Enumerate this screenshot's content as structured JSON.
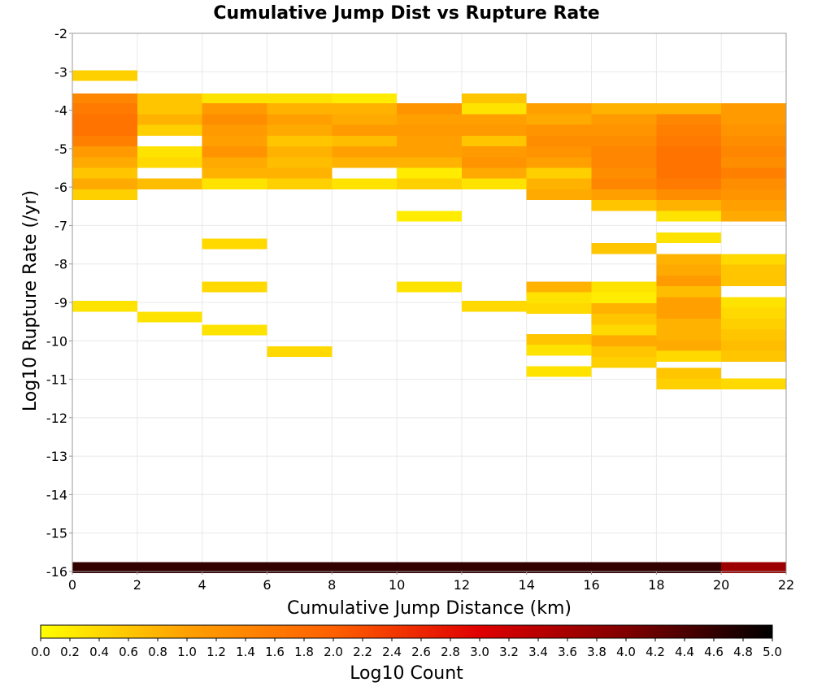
{
  "chart_data": {
    "type": "heatmap",
    "title": "Cumulative Jump Dist vs Rupture Rate",
    "xlabel": "Cumulative Jump Distance (km)",
    "ylabel": "Log10 Rupture Rate (/yr)",
    "xlim": [
      0,
      22
    ],
    "ylim": [
      -16,
      -2
    ],
    "x_ticks": [
      "0",
      "2",
      "4",
      "6",
      "8",
      "10",
      "12",
      "14",
      "16",
      "18",
      "20",
      "22"
    ],
    "y_ticks": [
      "-2",
      "-3",
      "-4",
      "-5",
      "-6",
      "-7",
      "-8",
      "-9",
      "-10",
      "-11",
      "-12",
      "-13",
      "-14",
      "-15",
      "-16"
    ],
    "grid": true,
    "x_bin_width": 2,
    "y_bin_width": 0.28,
    "colorbar": {
      "label": "Log10 Count",
      "min": 0,
      "max": 5,
      "ticks": [
        "0.0",
        "0.2",
        "0.4",
        "0.6",
        "0.8",
        "1.0",
        "1.2",
        "1.4",
        "1.6",
        "1.8",
        "2.0",
        "2.2",
        "2.4",
        "2.6",
        "2.8",
        "3.0",
        "3.2",
        "3.4",
        "3.6",
        "3.8",
        "4.0",
        "4.2",
        "4.4",
        "4.6",
        "4.8",
        "5.0"
      ],
      "colors": [
        "#ffff00",
        "#ffa000",
        "#ff6000",
        "#e00000",
        "#800000",
        "#000000"
      ]
    },
    "columns": [
      {
        "x": 0,
        "cells": [
          [
            -3.1,
            0.5
          ],
          [
            -3.7,
            1.4
          ],
          [
            -3.96,
            1.6
          ],
          [
            -4.24,
            1.7
          ],
          [
            -4.52,
            1.7
          ],
          [
            -4.8,
            1.5
          ],
          [
            -5.08,
            1.1
          ],
          [
            -5.36,
            0.9
          ],
          [
            -5.64,
            0.6
          ],
          [
            -5.92,
            0.9
          ],
          [
            -6.2,
            0.5
          ],
          [
            -9.1,
            0.3
          ],
          [
            -15.9,
            4.6
          ]
        ]
      },
      {
        "x": 2,
        "cells": [
          [
            -3.7,
            0.6
          ],
          [
            -3.96,
            0.6
          ],
          [
            -4.24,
            0.8
          ],
          [
            -4.52,
            0.5
          ],
          [
            -5.08,
            0.3
          ],
          [
            -5.36,
            0.4
          ],
          [
            -5.92,
            0.7
          ],
          [
            -9.38,
            0.3
          ],
          [
            -15.9,
            4.6
          ]
        ]
      },
      {
        "x": 4,
        "cells": [
          [
            -3.7,
            0.3
          ],
          [
            -3.96,
            1.1
          ],
          [
            -4.24,
            1.3
          ],
          [
            -4.52,
            1.1
          ],
          [
            -4.8,
            1.0
          ],
          [
            -5.08,
            1.2
          ],
          [
            -5.36,
            0.9
          ],
          [
            -5.64,
            0.8
          ],
          [
            -5.92,
            0.3
          ],
          [
            -7.48,
            0.4
          ],
          [
            -8.6,
            0.4
          ],
          [
            -9.72,
            0.3
          ],
          [
            -15.9,
            4.6
          ]
        ]
      },
      {
        "x": 6,
        "cells": [
          [
            -3.7,
            0.3
          ],
          [
            -3.96,
            0.8
          ],
          [
            -4.24,
            1.0
          ],
          [
            -4.52,
            0.9
          ],
          [
            -4.8,
            0.6
          ],
          [
            -5.08,
            0.8
          ],
          [
            -5.36,
            0.7
          ],
          [
            -5.64,
            0.8
          ],
          [
            -5.92,
            0.5
          ],
          [
            -10.28,
            0.4
          ],
          [
            -15.9,
            4.6
          ]
        ]
      },
      {
        "x": 8,
        "cells": [
          [
            -3.7,
            0.2
          ],
          [
            -3.96,
            0.8
          ],
          [
            -4.24,
            0.9
          ],
          [
            -4.52,
            1.1
          ],
          [
            -4.8,
            0.7
          ],
          [
            -5.08,
            1.0
          ],
          [
            -5.36,
            0.8
          ],
          [
            -5.92,
            0.3
          ],
          [
            -15.9,
            4.6
          ]
        ]
      },
      {
        "x": 10,
        "cells": [
          [
            -3.96,
            1.2
          ],
          [
            -4.24,
            1.0
          ],
          [
            -4.52,
            1.1
          ],
          [
            -4.8,
            1.0
          ],
          [
            -5.08,
            1.0
          ],
          [
            -5.36,
            0.8
          ],
          [
            -5.64,
            0.2
          ],
          [
            -5.92,
            0.5
          ],
          [
            -6.76,
            0.2
          ],
          [
            -8.6,
            0.3
          ],
          [
            -15.9,
            4.6
          ]
        ]
      },
      {
        "x": 12,
        "cells": [
          [
            -3.7,
            0.6
          ],
          [
            -3.96,
            0.3
          ],
          [
            -4.24,
            1.0
          ],
          [
            -4.52,
            1.1
          ],
          [
            -4.8,
            0.6
          ],
          [
            -5.08,
            1.1
          ],
          [
            -5.36,
            1.2
          ],
          [
            -5.64,
            0.9
          ],
          [
            -5.92,
            0.3
          ],
          [
            -9.1,
            0.4
          ],
          [
            -15.9,
            4.6
          ]
        ]
      },
      {
        "x": 14,
        "cells": [
          [
            -3.96,
            1.0
          ],
          [
            -4.24,
            0.9
          ],
          [
            -4.52,
            1.2
          ],
          [
            -4.8,
            1.3
          ],
          [
            -5.08,
            1.2
          ],
          [
            -5.36,
            1.0
          ],
          [
            -5.64,
            0.5
          ],
          [
            -5.92,
            0.8
          ],
          [
            -6.2,
            0.9
          ],
          [
            -8.6,
            0.8
          ],
          [
            -8.88,
            0.3
          ],
          [
            -9.16,
            0.4
          ],
          [
            -9.96,
            0.6
          ],
          [
            -10.24,
            0.3
          ],
          [
            -10.8,
            0.3
          ],
          [
            -15.9,
            4.6
          ]
        ]
      },
      {
        "x": 16,
        "cells": [
          [
            -3.96,
            0.8
          ],
          [
            -4.24,
            1.1
          ],
          [
            -4.52,
            1.2
          ],
          [
            -4.8,
            1.3
          ],
          [
            -5.08,
            1.4
          ],
          [
            -5.36,
            1.4
          ],
          [
            -5.64,
            1.3
          ],
          [
            -5.92,
            1.4
          ],
          [
            -6.2,
            1.0
          ],
          [
            -6.48,
            0.6
          ],
          [
            -7.6,
            0.6
          ],
          [
            -8.6,
            0.3
          ],
          [
            -8.88,
            0.2
          ],
          [
            -9.16,
            0.8
          ],
          [
            -9.44,
            0.6
          ],
          [
            -9.72,
            0.4
          ],
          [
            -10.0,
            0.9
          ],
          [
            -10.28,
            0.6
          ],
          [
            -10.56,
            0.5
          ],
          [
            -15.9,
            4.6
          ]
        ]
      },
      {
        "x": 18,
        "cells": [
          [
            -3.96,
            0.8
          ],
          [
            -4.24,
            1.4
          ],
          [
            -4.52,
            1.5
          ],
          [
            -4.8,
            1.6
          ],
          [
            -5.08,
            1.7
          ],
          [
            -5.36,
            1.7
          ],
          [
            -5.64,
            1.7
          ],
          [
            -5.92,
            1.6
          ],
          [
            -6.2,
            1.3
          ],
          [
            -6.48,
            0.8
          ],
          [
            -6.76,
            0.3
          ],
          [
            -7.32,
            0.3
          ],
          [
            -7.88,
            0.8
          ],
          [
            -8.16,
            0.9
          ],
          [
            -8.44,
            1.1
          ],
          [
            -8.72,
            0.7
          ],
          [
            -9.0,
            1.0
          ],
          [
            -9.28,
            1.0
          ],
          [
            -9.56,
            0.8
          ],
          [
            -9.84,
            0.8
          ],
          [
            -10.12,
            0.9
          ],
          [
            -10.4,
            0.4
          ],
          [
            -10.84,
            0.6
          ],
          [
            -11.12,
            0.5
          ],
          [
            -15.9,
            4.6
          ]
        ]
      },
      {
        "x": 20,
        "cells": [
          [
            -3.96,
            1.1
          ],
          [
            -4.24,
            1.1
          ],
          [
            -4.52,
            1.2
          ],
          [
            -4.8,
            1.3
          ],
          [
            -5.08,
            1.4
          ],
          [
            -5.36,
            1.3
          ],
          [
            -5.64,
            1.5
          ],
          [
            -5.92,
            1.3
          ],
          [
            -6.2,
            1.2
          ],
          [
            -6.48,
            1.0
          ],
          [
            -6.76,
            0.9
          ],
          [
            -7.88,
            0.4
          ],
          [
            -8.16,
            0.6
          ],
          [
            -8.44,
            0.6
          ],
          [
            -9.0,
            0.3
          ],
          [
            -9.28,
            0.4
          ],
          [
            -9.56,
            0.5
          ],
          [
            -9.84,
            0.6
          ],
          [
            -10.12,
            0.7
          ],
          [
            -10.4,
            0.6
          ],
          [
            -11.12,
            0.4
          ],
          [
            -15.9,
            3.7
          ]
        ]
      }
    ]
  }
}
